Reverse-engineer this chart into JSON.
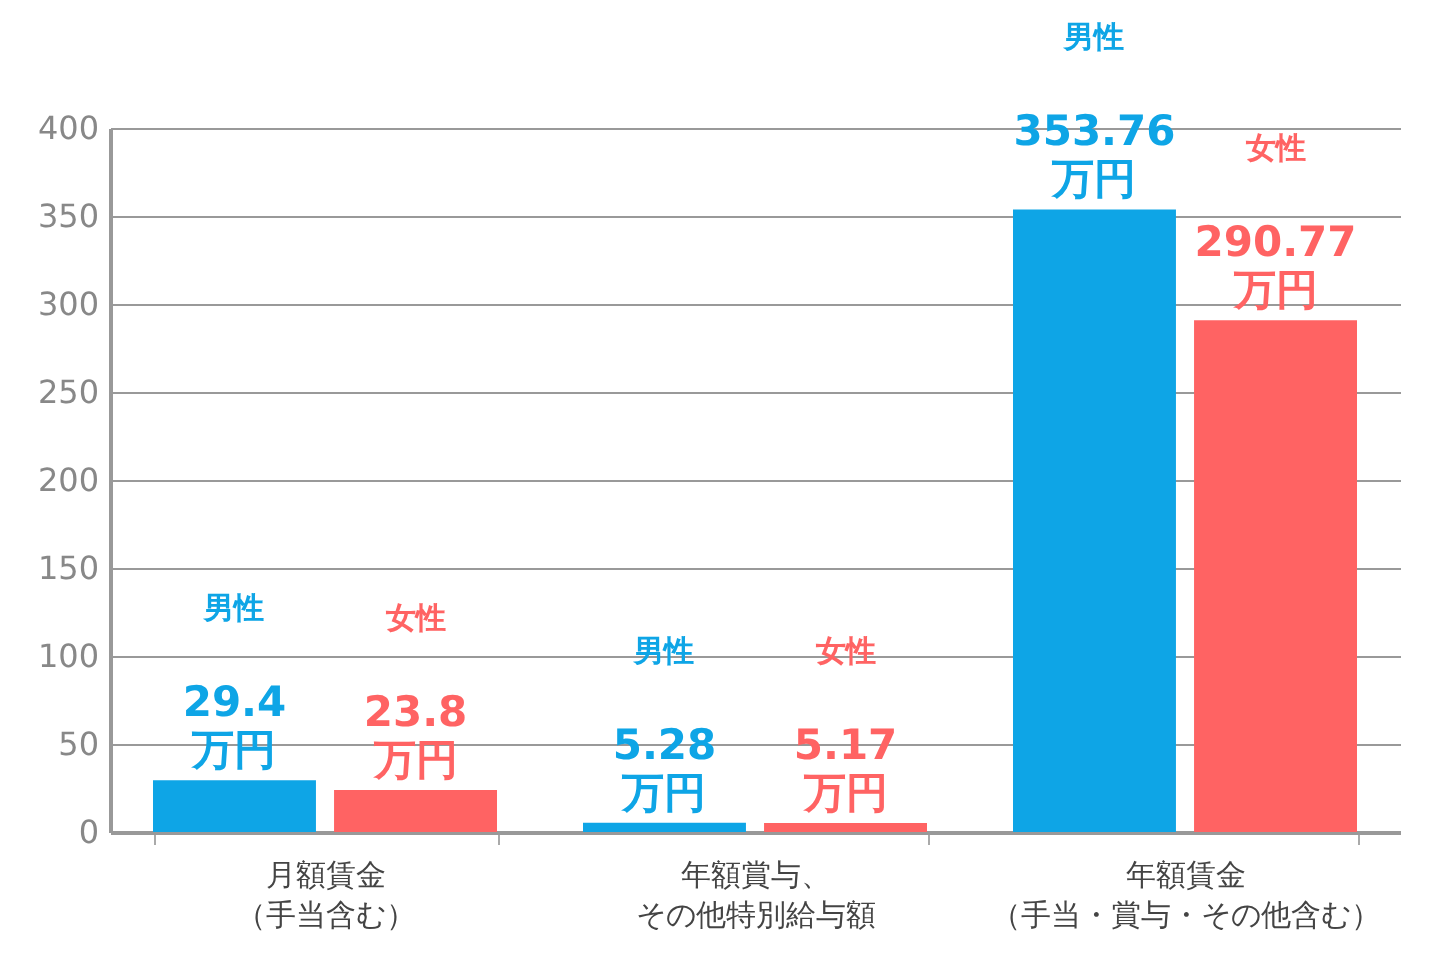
{
  "chart_data": {
    "type": "bar",
    "categories": [
      "月額賃金（手当含む）",
      "年額賞与、その他特別給与額",
      "年額賃金（手当・賞与・その他含む）"
    ],
    "series": [
      {
        "name": "男性",
        "color": "#0ea5e6",
        "values": [
          29.4,
          5.28,
          353.76
        ],
        "value_labels": [
          "29.4万円",
          "5.28万円",
          "353.76万円"
        ]
      },
      {
        "name": "女性",
        "color": "#ff6363",
        "values": [
          23.8,
          5.17,
          290.77
        ],
        "value_labels": [
          "23.8万円",
          "5.17万円",
          "290.77万円"
        ]
      }
    ],
    "ylim": [
      0,
      400
    ],
    "yticks": [
      0,
      50,
      100,
      150,
      200,
      250,
      300,
      350,
      400
    ],
    "grid": "y",
    "data_labels": true,
    "legend": false
  }
}
